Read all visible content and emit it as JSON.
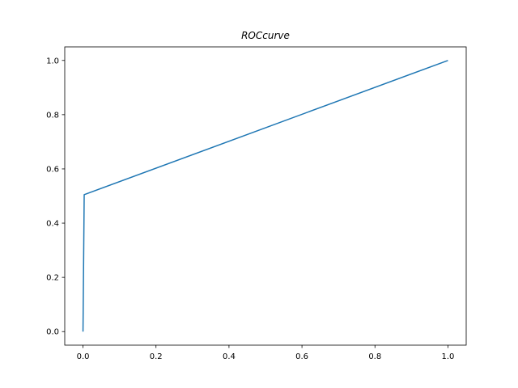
{
  "chart_data": {
    "type": "line",
    "title": "ROCcurve",
    "xlabel": "",
    "ylabel": "",
    "xlim": [
      -0.05,
      1.05
    ],
    "ylim": [
      -0.05,
      1.05
    ],
    "x_ticks": [
      0.0,
      0.2,
      0.4,
      0.6,
      0.8,
      1.0
    ],
    "x_tick_labels": [
      "0.0",
      "0.2",
      "0.4",
      "0.6",
      "0.8",
      "1.0"
    ],
    "y_ticks": [
      0.0,
      0.2,
      0.4,
      0.6,
      0.8,
      1.0
    ],
    "y_tick_labels": [
      "0.0",
      "0.2",
      "0.4",
      "0.6",
      "0.8",
      "1.0"
    ],
    "grid": false,
    "series": [
      {
        "color": "#1f77b4",
        "x": [
          0.0,
          0.0033,
          1.0
        ],
        "y": [
          0.0,
          0.505,
          1.0
        ]
      }
    ]
  }
}
